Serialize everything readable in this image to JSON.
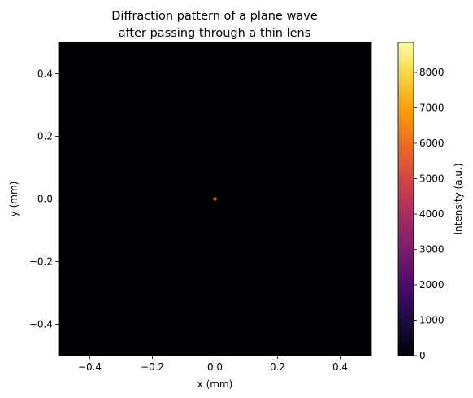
{
  "chart_data": {
    "type": "heatmap",
    "title_lines": [
      "Diffraction pattern of a plane wave",
      "after passing through a thin lens"
    ],
    "xlabel": "x (mm)",
    "ylabel": "y (mm)",
    "xlim": [
      -0.5,
      0.5
    ],
    "ylim": [
      -0.5,
      0.5
    ],
    "x_ticks": [
      -0.4,
      -0.2,
      0.0,
      0.2,
      0.4
    ],
    "x_tick_labels": [
      "−0.4",
      "−0.2",
      "0.0",
      "0.2",
      "0.4"
    ],
    "y_ticks": [
      -0.4,
      -0.2,
      0.0,
      0.2,
      0.4
    ],
    "y_tick_labels": [
      "−0.4",
      "−0.2",
      "0.0",
      "0.2",
      "0.4"
    ],
    "background_intensity": 0,
    "peak": {
      "x": 0.0,
      "y": 0.0,
      "intensity": 8800
    },
    "colormap": "inferno",
    "colormap_stops": [
      "#000004",
      "#1b0c41",
      "#4a0c6b",
      "#781c6d",
      "#a52c60",
      "#cf4446",
      "#ed6925",
      "#fb9b06",
      "#f7d13d",
      "#fcffa4"
    ],
    "colorbar": {
      "label": "Intensity (a.u.)",
      "range": [
        0,
        8850
      ],
      "ticks": [
        0,
        1000,
        2000,
        3000,
        4000,
        5000,
        6000,
        7000,
        8000
      ],
      "tick_labels": [
        "0",
        "1000",
        "2000",
        "3000",
        "4000",
        "5000",
        "6000",
        "7000",
        "8000"
      ]
    },
    "grid": false
  }
}
